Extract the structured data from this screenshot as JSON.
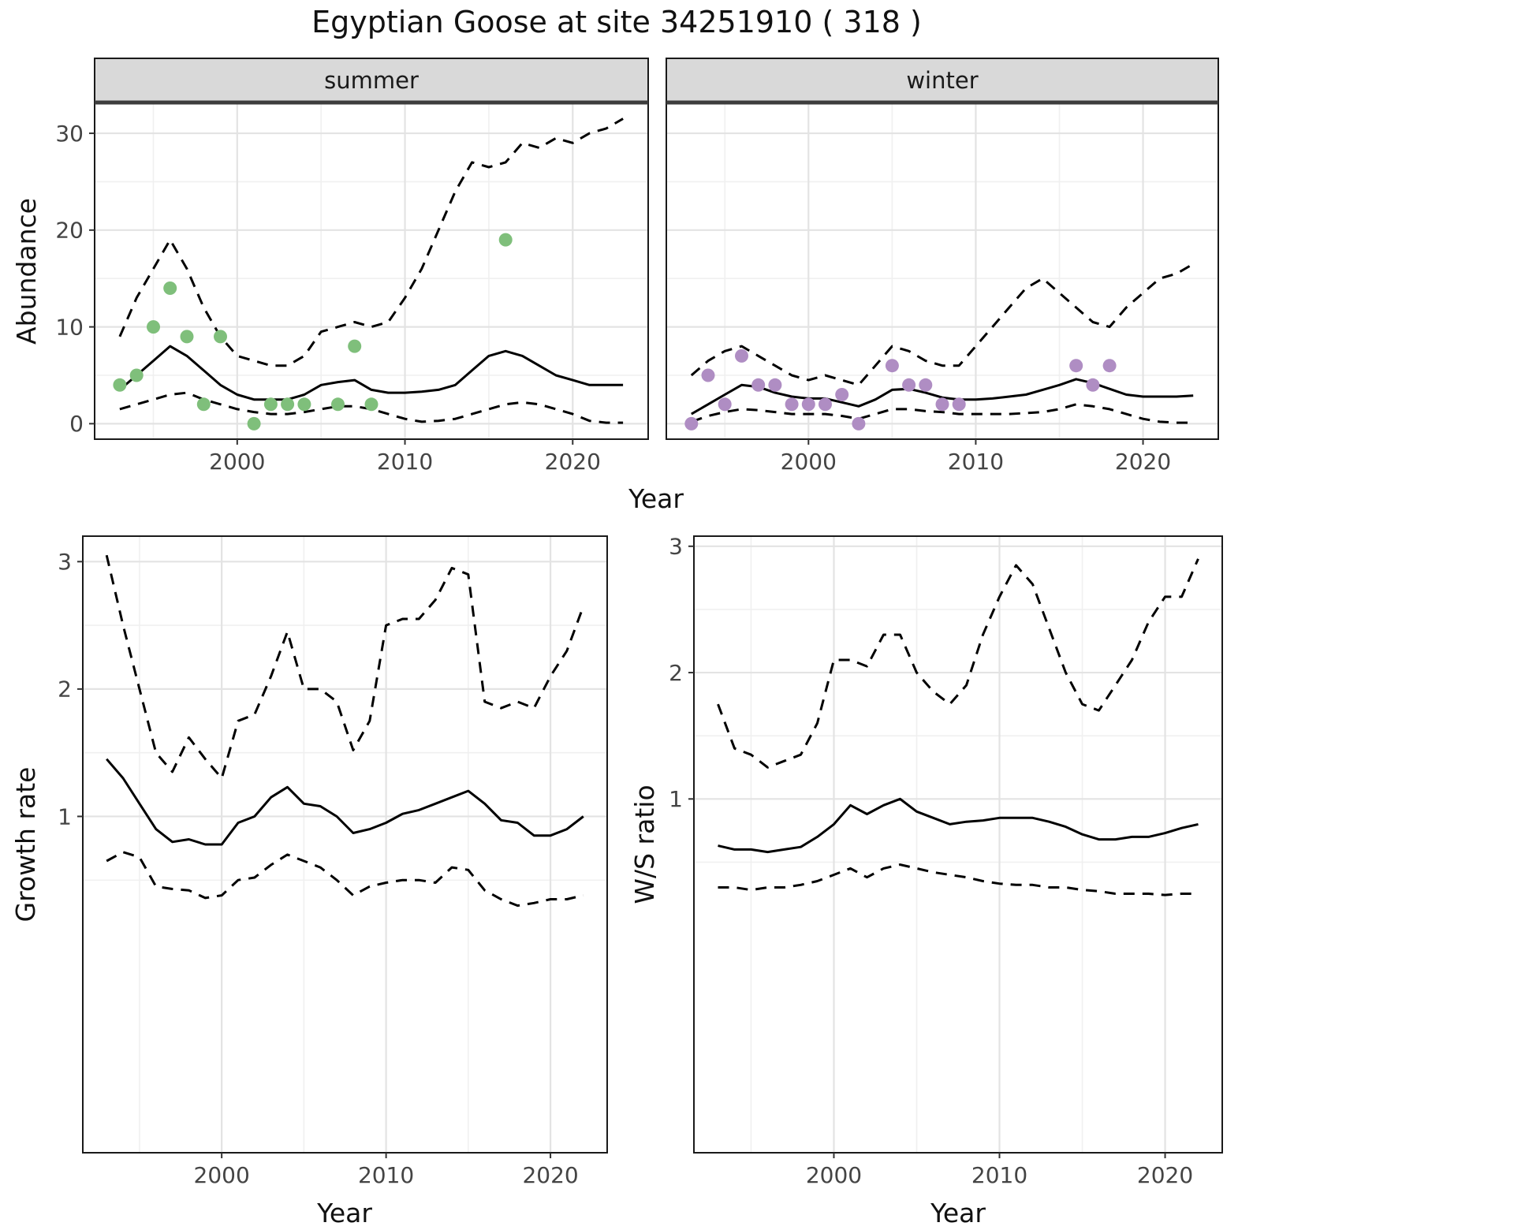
{
  "title": "Egyptian Goose at site 34251910 ( 318 )",
  "colors": {
    "summer_points": "#7FBF7B",
    "winter_points": "#AF8DC3",
    "line": "#000000",
    "strip_bg": "#D9D9D9",
    "grid_major": "#E3E3E3",
    "grid_minor": "#F0F0F0",
    "panel_border": "#1A1A1A"
  },
  "chart_data": [
    {
      "key": "abundance-summer",
      "type": "scatter",
      "facet": "summer",
      "xlabel": "Year",
      "ylabel": "Abundance",
      "xlim": [
        1991.5,
        2024.5
      ],
      "ylim": [
        -1.6,
        33.1
      ],
      "xticks": [
        2000,
        2010,
        2020
      ],
      "xminor": [
        1995,
        2005,
        2015
      ],
      "yticks": [
        0,
        10,
        20,
        30
      ],
      "yminor": [
        5,
        15,
        25
      ],
      "points": {
        "name": "observed-count",
        "color": "#7FBF7B",
        "data": [
          [
            1993,
            4
          ],
          [
            1994,
            5
          ],
          [
            1995,
            10
          ],
          [
            1996,
            14
          ],
          [
            1997,
            9
          ],
          [
            1998,
            2
          ],
          [
            1999,
            9
          ],
          [
            2001,
            0
          ],
          [
            2002,
            2
          ],
          [
            2003,
            2
          ],
          [
            2004,
            2
          ],
          [
            2006,
            2
          ],
          [
            2007,
            8
          ],
          [
            2008,
            2
          ],
          [
            2016,
            19
          ]
        ]
      },
      "series": [
        {
          "name": "smoothed-index",
          "style": "solid",
          "x": [
            1993,
            1994,
            1995,
            1996,
            1997,
            1998,
            1999,
            2000,
            2001,
            2002,
            2003,
            2004,
            2005,
            2006,
            2007,
            2008,
            2009,
            2010,
            2011,
            2012,
            2013,
            2014,
            2015,
            2016,
            2017,
            2018,
            2019,
            2020,
            2021,
            2022,
            2023
          ],
          "y": [
            3.5,
            5,
            6.5,
            8,
            7,
            5.5,
            4,
            3,
            2.5,
            2.5,
            2.5,
            3,
            4,
            4.3,
            4.5,
            3.5,
            3.2,
            3.2,
            3.3,
            3.5,
            4,
            5.5,
            7,
            7.5,
            7,
            6,
            5,
            4.5,
            4,
            4,
            4
          ]
        },
        {
          "name": "upper-confidence",
          "style": "dashed",
          "x": [
            1993,
            1994,
            1995,
            1996,
            1997,
            1998,
            1999,
            2000,
            2001,
            2002,
            2003,
            2004,
            2005,
            2006,
            2007,
            2008,
            2009,
            2010,
            2011,
            2012,
            2013,
            2014,
            2015,
            2016,
            2017,
            2018,
            2019,
            2020,
            2021,
            2022,
            2023
          ],
          "y": [
            9,
            13,
            16,
            19,
            16,
            12,
            9,
            7,
            6.5,
            6,
            6,
            7,
            9.5,
            10,
            10.5,
            10,
            10.5,
            13,
            16,
            20,
            24,
            27,
            26.5,
            27,
            29,
            28.5,
            29.5,
            29,
            30,
            30.5,
            31.5
          ]
        },
        {
          "name": "lower-confidence",
          "style": "dashed",
          "x": [
            1993,
            1994,
            1995,
            1996,
            1997,
            1998,
            1999,
            2000,
            2001,
            2002,
            2003,
            2004,
            2005,
            2006,
            2007,
            2008,
            2009,
            2010,
            2011,
            2012,
            2013,
            2014,
            2015,
            2016,
            2017,
            2018,
            2019,
            2020,
            2021,
            2022,
            2023
          ],
          "y": [
            1.5,
            2,
            2.5,
            3,
            3.2,
            2.5,
            2,
            1.5,
            1.2,
            1,
            1,
            1.2,
            1.5,
            1.8,
            1.8,
            1.5,
            1,
            0.5,
            0.2,
            0.3,
            0.5,
            1,
            1.5,
            2,
            2.2,
            2,
            1.5,
            1,
            0.3,
            0.1,
            0.1
          ]
        }
      ]
    },
    {
      "key": "abundance-winter",
      "type": "scatter",
      "facet": "winter",
      "xlabel": "Year",
      "ylabel": "Abundance",
      "xlim": [
        1991.5,
        2024.5
      ],
      "ylim": [
        -1.6,
        33.1
      ],
      "xticks": [
        2000,
        2010,
        2020
      ],
      "xminor": [
        1995,
        2005,
        2015
      ],
      "yticks": [
        0,
        10,
        20,
        30
      ],
      "yminor": [
        5,
        15,
        25
      ],
      "points": {
        "name": "observed-count",
        "color": "#AF8DC3",
        "data": [
          [
            1993,
            0
          ],
          [
            1994,
            5
          ],
          [
            1995,
            2
          ],
          [
            1996,
            7
          ],
          [
            1997,
            4
          ],
          [
            1998,
            4
          ],
          [
            1999,
            2
          ],
          [
            2000,
            2
          ],
          [
            2001,
            2
          ],
          [
            2002,
            3
          ],
          [
            2003,
            0
          ],
          [
            2005,
            6
          ],
          [
            2006,
            4
          ],
          [
            2007,
            4
          ],
          [
            2008,
            2
          ],
          [
            2009,
            2
          ],
          [
            2016,
            6
          ],
          [
            2017,
            4
          ],
          [
            2018,
            6
          ]
        ]
      },
      "series": [
        {
          "name": "smoothed-index",
          "style": "solid",
          "x": [
            1993,
            1994,
            1995,
            1996,
            1997,
            1998,
            1999,
            2000,
            2001,
            2002,
            2003,
            2004,
            2005,
            2006,
            2007,
            2008,
            2009,
            2010,
            2011,
            2012,
            2013,
            2014,
            2015,
            2016,
            2017,
            2018,
            2019,
            2020,
            2021,
            2022,
            2023
          ],
          "y": [
            1,
            2,
            3,
            4,
            3.8,
            3.2,
            2.8,
            2.6,
            2.6,
            2.2,
            1.8,
            2.5,
            3.5,
            3.6,
            3.2,
            2.7,
            2.5,
            2.5,
            2.6,
            2.8,
            3,
            3.5,
            4,
            4.6,
            4.2,
            3.6,
            3,
            2.8,
            2.8,
            2.8,
            2.9
          ]
        },
        {
          "name": "upper-confidence",
          "style": "dashed",
          "x": [
            1993,
            1994,
            1995,
            1996,
            1997,
            1998,
            1999,
            2000,
            2001,
            2002,
            2003,
            2004,
            2005,
            2006,
            2007,
            2008,
            2009,
            2010,
            2011,
            2012,
            2013,
            2014,
            2015,
            2016,
            2017,
            2018,
            2019,
            2020,
            2021,
            2022,
            2023
          ],
          "y": [
            5,
            6.5,
            7.5,
            8,
            7,
            6,
            5,
            4.5,
            5,
            4.5,
            4,
            6,
            8,
            7.5,
            6.5,
            6,
            6,
            8,
            10,
            12,
            14,
            15,
            13.5,
            12,
            10.5,
            10,
            12,
            13.5,
            15,
            15.5,
            16.5
          ]
        },
        {
          "name": "lower-confidence",
          "style": "dashed",
          "x": [
            1993,
            1994,
            1995,
            1996,
            1997,
            1998,
            1999,
            2000,
            2001,
            2002,
            2003,
            2004,
            2005,
            2006,
            2007,
            2008,
            2009,
            2010,
            2011,
            2012,
            2013,
            2014,
            2015,
            2016,
            2017,
            2018,
            2019,
            2020,
            2021,
            2022,
            2023
          ],
          "y": [
            0.2,
            0.8,
            1.2,
            1.5,
            1.4,
            1.2,
            1,
            1,
            1,
            0.8,
            0.5,
            1,
            1.5,
            1.5,
            1.3,
            1.2,
            1,
            1,
            1,
            1,
            1.1,
            1.2,
            1.5,
            2,
            1.8,
            1.5,
            1,
            0.5,
            0.2,
            0.1,
            0.1
          ]
        }
      ]
    },
    {
      "key": "growth-rate",
      "type": "line",
      "facet": "",
      "xlabel": "Year",
      "ylabel": "Growth rate",
      "xlim": [
        1991.55,
        2023.45
      ],
      "ylim": [
        -1.64,
        3.2
      ],
      "xticks": [
        2000,
        2010,
        2020
      ],
      "xminor": [
        1995,
        2005,
        2015
      ],
      "yticks": [
        1,
        2,
        3
      ],
      "yminor": [
        0.5,
        1.5,
        2.5
      ],
      "series": [
        {
          "name": "growth-rate-estimate",
          "style": "solid",
          "x": [
            1993,
            1994,
            1995,
            1996,
            1997,
            1998,
            1999,
            2000,
            2001,
            2002,
            2003,
            2004,
            2005,
            2006,
            2007,
            2008,
            2009,
            2010,
            2011,
            2012,
            2013,
            2014,
            2015,
            2016,
            2017,
            2018,
            2019,
            2020,
            2021,
            2022
          ],
          "y": [
            1.45,
            1.3,
            1.1,
            0.9,
            0.8,
            0.82,
            0.78,
            0.78,
            0.95,
            1.0,
            1.15,
            1.23,
            1.1,
            1.08,
            1.0,
            0.87,
            0.9,
            0.95,
            1.02,
            1.05,
            1.1,
            1.15,
            1.2,
            1.1,
            0.97,
            0.95,
            0.85,
            0.85,
            0.9,
            1.0
          ]
        },
        {
          "name": "upper-confidence",
          "style": "dashed",
          "x": [
            1993,
            1994,
            1995,
            1996,
            1997,
            1998,
            1999,
            2000,
            2001,
            2002,
            2003,
            2004,
            2005,
            2006,
            2007,
            2008,
            2009,
            2010,
            2011,
            2012,
            2013,
            2014,
            2015,
            2016,
            2017,
            2018,
            2019,
            2020,
            2021,
            2022
          ],
          "y": [
            3.05,
            2.5,
            2.0,
            1.5,
            1.35,
            1.62,
            1.45,
            1.3,
            1.75,
            1.8,
            2.1,
            2.45,
            2.0,
            2.0,
            1.9,
            1.52,
            1.75,
            2.5,
            2.55,
            2.55,
            2.7,
            2.95,
            2.9,
            1.9,
            1.85,
            1.9,
            1.85,
            2.1,
            2.3,
            2.65
          ]
        },
        {
          "name": "lower-confidence",
          "style": "dashed",
          "x": [
            1993,
            1994,
            1995,
            1996,
            1997,
            1998,
            1999,
            2000,
            2001,
            2002,
            2003,
            2004,
            2005,
            2006,
            2007,
            2008,
            2009,
            2010,
            2011,
            2012,
            2013,
            2014,
            2015,
            2016,
            2017,
            2018,
            2019,
            2020,
            2021,
            2022
          ],
          "y": [
            0.65,
            0.72,
            0.68,
            0.45,
            0.43,
            0.42,
            0.36,
            0.38,
            0.5,
            0.52,
            0.62,
            0.7,
            0.65,
            0.6,
            0.5,
            0.38,
            0.45,
            0.48,
            0.5,
            0.5,
            0.48,
            0.6,
            0.58,
            0.42,
            0.35,
            0.3,
            0.32,
            0.35,
            0.35,
            0.38
          ]
        }
      ]
    },
    {
      "key": "ws-ratio",
      "type": "line",
      "facet": "",
      "xlabel": "Year",
      "ylabel": "W/S ratio",
      "xlim": [
        1991.55,
        2023.45
      ],
      "ylim": [
        -1.8,
        3.08
      ],
      "xticks": [
        2000,
        2010,
        2020
      ],
      "xminor": [
        1995,
        2005,
        2015
      ],
      "yticks": [
        1,
        2,
        3
      ],
      "yminor": [
        0.5,
        1.5,
        2.5
      ],
      "series": [
        {
          "name": "ws-ratio-estimate",
          "style": "solid",
          "x": [
            1993,
            1994,
            1995,
            1996,
            1997,
            1998,
            1999,
            2000,
            2001,
            2002,
            2003,
            2004,
            2005,
            2006,
            2007,
            2008,
            2009,
            2010,
            2011,
            2012,
            2013,
            2014,
            2015,
            2016,
            2017,
            2018,
            2019,
            2020,
            2021,
            2022
          ],
          "y": [
            0.63,
            0.6,
            0.6,
            0.58,
            0.6,
            0.62,
            0.7,
            0.8,
            0.95,
            0.88,
            0.95,
            1.0,
            0.9,
            0.85,
            0.8,
            0.82,
            0.83,
            0.85,
            0.85,
            0.85,
            0.82,
            0.78,
            0.72,
            0.68,
            0.68,
            0.7,
            0.7,
            0.73,
            0.77,
            0.8
          ]
        },
        {
          "name": "upper-confidence",
          "style": "dashed",
          "x": [
            1993,
            1994,
            1995,
            1996,
            1997,
            1998,
            1999,
            2000,
            2001,
            2002,
            2003,
            2004,
            2005,
            2006,
            2007,
            2008,
            2009,
            2010,
            2011,
            2012,
            2013,
            2014,
            2015,
            2016,
            2017,
            2018,
            2019,
            2020,
            2021,
            2022
          ],
          "y": [
            1.75,
            1.4,
            1.35,
            1.25,
            1.3,
            1.35,
            1.6,
            2.1,
            2.1,
            2.05,
            2.3,
            2.3,
            2.0,
            1.85,
            1.75,
            1.9,
            2.3,
            2.6,
            2.85,
            2.7,
            2.35,
            2.0,
            1.75,
            1.7,
            1.9,
            2.1,
            2.4,
            2.6,
            2.6,
            2.9
          ]
        },
        {
          "name": "lower-confidence",
          "style": "dashed",
          "x": [
            1993,
            1994,
            1995,
            1996,
            1997,
            1998,
            1999,
            2000,
            2001,
            2002,
            2003,
            2004,
            2005,
            2006,
            2007,
            2008,
            2009,
            2010,
            2011,
            2012,
            2013,
            2014,
            2015,
            2016,
            2017,
            2018,
            2019,
            2020,
            2021,
            2022
          ],
          "y": [
            0.3,
            0.3,
            0.28,
            0.3,
            0.3,
            0.32,
            0.35,
            0.4,
            0.45,
            0.38,
            0.45,
            0.48,
            0.45,
            0.42,
            0.4,
            0.38,
            0.35,
            0.33,
            0.32,
            0.32,
            0.3,
            0.3,
            0.28,
            0.27,
            0.25,
            0.25,
            0.25,
            0.24,
            0.25,
            0.25
          ]
        }
      ]
    }
  ]
}
